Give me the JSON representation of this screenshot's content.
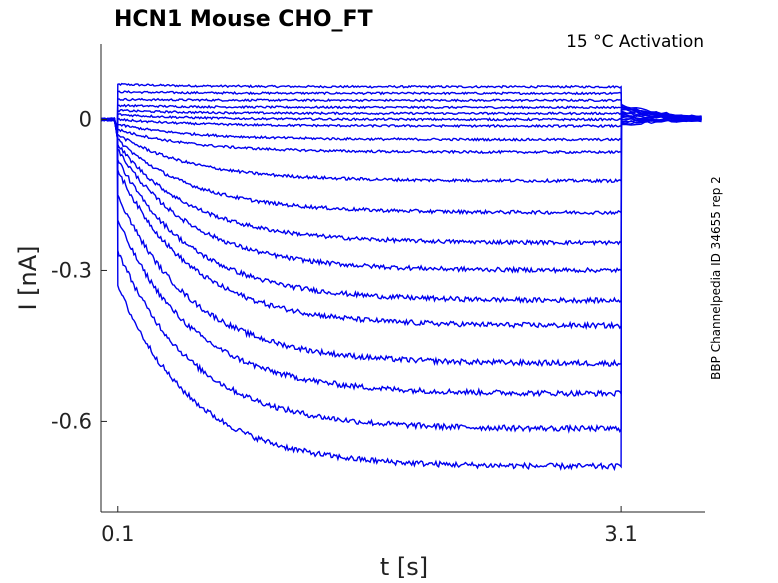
{
  "chart_data": {
    "type": "line",
    "title": "HCN1  Mouse  CHO_FT",
    "annotation": "15 °C  Activation",
    "side_label": "BBP Channelpedia ID 34655 rep 2",
    "xlabel": "t [s]",
    "ylabel": "I [nA]",
    "xlim": [
      0.0,
      3.6
    ],
    "ylim": [
      -0.78,
      0.15
    ],
    "x_ticks": [
      0.1,
      3.1
    ],
    "x_tick_labels": [
      "0.1",
      "3.1"
    ],
    "y_ticks": [
      0,
      -0.3,
      -0.6
    ],
    "y_tick_labels": [
      "0",
      "-0.3",
      "-0.6"
    ],
    "grid": false,
    "color": "#0000ee",
    "pulse_start_s": 0.1,
    "pulse_end_s": 3.1,
    "series": [
      {
        "initial_nA": 0.07,
        "steady_nA": 0.065
      },
      {
        "initial_nA": 0.055,
        "steady_nA": 0.052
      },
      {
        "initial_nA": 0.04,
        "steady_nA": 0.038
      },
      {
        "initial_nA": 0.028,
        "steady_nA": 0.024
      },
      {
        "initial_nA": 0.018,
        "steady_nA": 0.012
      },
      {
        "initial_nA": 0.01,
        "steady_nA": 0.0
      },
      {
        "initial_nA": 0.0,
        "steady_nA": -0.013
      },
      {
        "initial_nA": -0.01,
        "steady_nA": -0.04
      },
      {
        "initial_nA": -0.02,
        "steady_nA": -0.065
      },
      {
        "initial_nA": -0.03,
        "steady_nA": -0.122
      },
      {
        "initial_nA": -0.04,
        "steady_nA": -0.185
      },
      {
        "initial_nA": -0.05,
        "steady_nA": -0.245
      },
      {
        "initial_nA": -0.06,
        "steady_nA": -0.3
      },
      {
        "initial_nA": -0.08,
        "steady_nA": -0.36
      },
      {
        "initial_nA": -0.1,
        "steady_nA": -0.41
      },
      {
        "initial_nA": -0.15,
        "steady_nA": -0.485
      },
      {
        "initial_nA": -0.2,
        "steady_nA": -0.545
      },
      {
        "initial_nA": -0.26,
        "steady_nA": -0.615
      },
      {
        "initial_nA": -0.33,
        "steady_nA": -0.69
      }
    ]
  }
}
